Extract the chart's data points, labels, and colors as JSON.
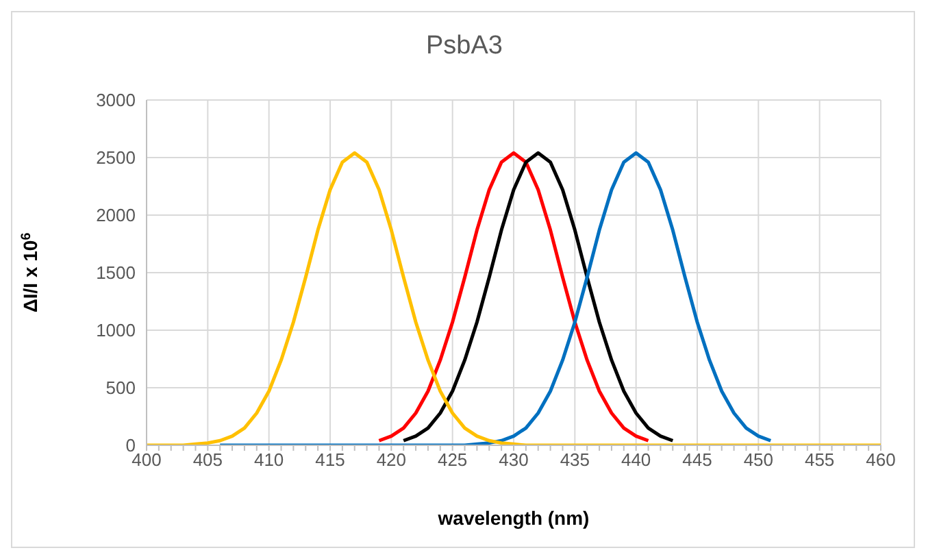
{
  "chart_data": {
    "type": "line",
    "title": "PsbA3",
    "xlabel": "wavelength (nm)",
    "ylabel": "ΔI/I  x 10$^{6}$",
    "x": [
      400,
      401,
      402,
      403,
      404,
      405,
      406,
      407,
      408,
      409,
      410,
      411,
      412,
      413,
      414,
      415,
      416,
      417,
      418,
      419,
      420,
      421,
      422,
      423,
      424,
      425,
      426,
      427,
      428,
      429,
      430,
      431,
      432,
      433,
      434,
      435,
      436,
      437,
      438,
      439,
      440,
      441,
      442,
      443,
      444,
      445,
      446,
      447,
      448,
      449,
      450,
      451,
      452,
      453,
      454,
      455,
      456,
      457,
      458,
      459,
      460
    ],
    "series": [
      {
        "color": "#ff0000",
        "values": [
          null,
          null,
          null,
          null,
          null,
          null,
          null,
          null,
          null,
          null,
          null,
          null,
          null,
          null,
          null,
          null,
          null,
          null,
          null,
          40,
          80,
          150,
          280,
          470,
          740,
          1070,
          1460,
          1870,
          2220,
          2460,
          2540,
          2460,
          2220,
          1870,
          1460,
          1070,
          740,
          470,
          280,
          150,
          80,
          40,
          null,
          null,
          null,
          null,
          null,
          null,
          null,
          null,
          null,
          null,
          null,
          null,
          null,
          null,
          null,
          null,
          null,
          null,
          null
        ]
      },
      {
        "color": "#000000",
        "values": [
          null,
          null,
          null,
          null,
          null,
          null,
          null,
          null,
          null,
          null,
          null,
          null,
          null,
          null,
          null,
          null,
          null,
          null,
          null,
          null,
          null,
          40,
          80,
          150,
          280,
          470,
          740,
          1070,
          1460,
          1870,
          2220,
          2460,
          2540,
          2460,
          2220,
          1870,
          1460,
          1070,
          740,
          470,
          280,
          150,
          80,
          40,
          null,
          null,
          null,
          null,
          null,
          null,
          null,
          null,
          null,
          null,
          null,
          null,
          null,
          null,
          null,
          null,
          null
        ]
      },
      {
        "color": "#0070c0",
        "values": [
          null,
          null,
          null,
          null,
          null,
          null,
          0,
          0,
          0,
          0,
          0,
          0,
          0,
          0,
          0,
          0,
          0,
          0,
          0,
          0,
          0,
          0,
          0,
          0,
          0,
          0,
          0,
          10,
          20,
          40,
          80,
          150,
          280,
          470,
          740,
          1070,
          1460,
          1870,
          2220,
          2460,
          2540,
          2460,
          2220,
          1870,
          1460,
          1070,
          740,
          470,
          280,
          150,
          80,
          40,
          null,
          null,
          null,
          null,
          null,
          null,
          null,
          null,
          null
        ]
      },
      {
        "color": "#ffc000",
        "values": [
          0,
          0,
          0,
          0,
          10,
          20,
          40,
          80,
          150,
          280,
          470,
          740,
          1070,
          1460,
          1870,
          2220,
          2460,
          2540,
          2460,
          2220,
          1870,
          1460,
          1070,
          740,
          470,
          280,
          150,
          80,
          40,
          20,
          10,
          0,
          0,
          0,
          0,
          0,
          0,
          0,
          0,
          0,
          0,
          0,
          0,
          0,
          0,
          0,
          0,
          0,
          0,
          0,
          0,
          0,
          0,
          0,
          0,
          0,
          0,
          0,
          0,
          0,
          0
        ]
      }
    ],
    "xlim": [
      400,
      460
    ],
    "xticks": [
      400,
      {
        "value": 401,
        "label": null
      },
      {
        "value": 402,
        "label": null
      },
      {
        "value": 403,
        "label": null
      },
      {
        "value": 404,
        "label": null
      },
      405,
      {
        "value": 406,
        "label": null
      },
      {
        "value": 407,
        "label": null
      },
      {
        "value": 408,
        "label": null
      },
      {
        "value": 409,
        "label": null
      },
      410,
      {
        "value": 411,
        "label": null
      },
      {
        "value": 412,
        "label": null
      },
      {
        "value": 413,
        "label": null
      },
      {
        "value": 414,
        "label": null
      },
      415,
      {
        "value": 416,
        "label": null
      },
      {
        "value": 417,
        "label": null
      },
      {
        "value": 418,
        "label": null
      },
      {
        "value": 419,
        "label": null
      },
      420,
      {
        "value": 421,
        "label": null
      },
      {
        "value": 422,
        "label": null
      },
      {
        "value": 423,
        "label": null
      },
      {
        "value": 424,
        "label": null
      },
      425,
      {
        "value": 426,
        "label": null
      },
      {
        "value": 427,
        "label": null
      },
      {
        "value": 428,
        "label": null
      },
      {
        "value": 429,
        "label": null
      },
      430,
      {
        "value": 431,
        "label": null
      },
      {
        "value": 432,
        "label": null
      },
      {
        "value": 433,
        "label": null
      },
      {
        "value": 434,
        "label": null
      },
      435,
      {
        "value": 436,
        "label": null
      },
      {
        "value": 437,
        "label": null
      },
      {
        "value": 438,
        "label": null
      },
      {
        "value": 439,
        "label": null
      },
      440,
      {
        "value": 441,
        "label": null
      },
      {
        "value": 442,
        "label": null
      },
      {
        "value": 443,
        "label": null
      },
      {
        "value": 444,
        "label": null
      },
      445,
      {
        "value": 446,
        "label": null
      },
      {
        "value": 447,
        "label": null
      },
      {
        "value": 448,
        "label": null
      },
      {
        "value": 449,
        "label": null
      },
      450,
      {
        "value": 451,
        "label": null
      },
      {
        "value": 452,
        "label": null
      },
      {
        "value": 453,
        "label": null
      },
      {
        "value": 454,
        "label": null
      },
      455,
      {
        "value": 456,
        "label": null
      },
      {
        "value": 457,
        "label": null
      },
      {
        "value": 458,
        "label": null
      },
      {
        "value": 459,
        "label": null
      },
      460
    ],
    "ylim": [
      0,
      3000
    ],
    "yticks": [
      0,
      500,
      1000,
      1500,
      2000,
      2500,
      3000
    ],
    "grid": true,
    "legend": false,
    "marker": "none",
    "line_style": "solid"
  }
}
